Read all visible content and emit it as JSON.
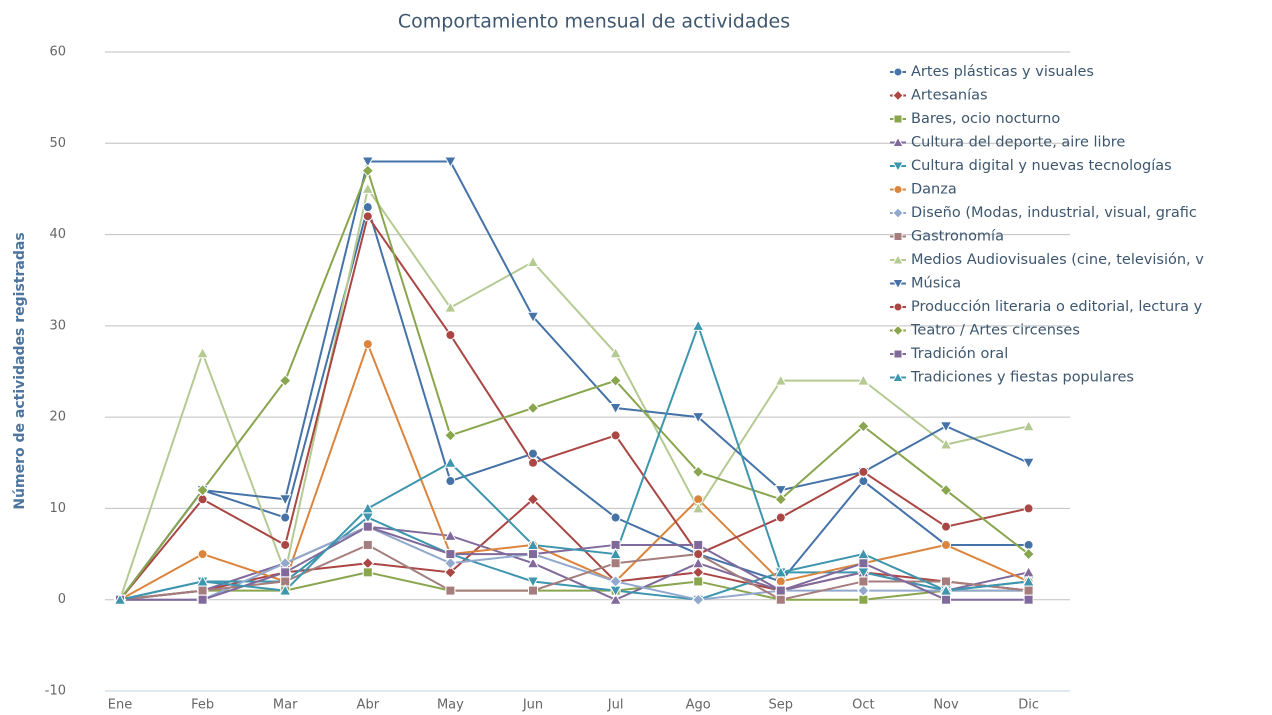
{
  "chart_data": {
    "type": "line",
    "title": "Comportamiento mensual de actividades",
    "y_axis_label": "Número de actividades registradas",
    "categories": [
      "Ene",
      "Feb",
      "Mar",
      "Abr",
      "May",
      "Jun",
      "Jul",
      "Ago",
      "Sep",
      "Oct",
      "Nov",
      "Dic"
    ],
    "ylim": [
      -10,
      60
    ],
    "yticks": [
      -10,
      0,
      10,
      20,
      30,
      40,
      50,
      60
    ],
    "grid": true,
    "legend": "top-right",
    "series": [
      {
        "name": "Artes plásticas y visuales",
        "color": "#4572A7",
        "marker": "circle",
        "values": [
          0,
          12,
          9,
          43,
          13,
          16,
          9,
          5,
          2,
          13,
          6,
          6
        ]
      },
      {
        "name": "Artesanías",
        "color": "#AA4643",
        "marker": "diamond",
        "values": [
          0,
          1,
          3,
          4,
          3,
          11,
          2,
          3,
          1,
          3,
          2,
          1
        ]
      },
      {
        "name": "Bares, ocio nocturno",
        "color": "#89A54E",
        "marker": "square",
        "values": [
          0,
          1,
          1,
          3,
          1,
          1,
          1,
          2,
          0,
          0,
          1,
          1
        ]
      },
      {
        "name": "Cultura del deporte, aire libre",
        "color": "#80699B",
        "marker": "triangle",
        "values": [
          0,
          1,
          4,
          8,
          7,
          4,
          0,
          4,
          1,
          3,
          1,
          3
        ]
      },
      {
        "name": "Cultura digital y nuevas tecnologías",
        "color": "#3D96AE",
        "marker": "triangle-down",
        "values": [
          0,
          2,
          2,
          9,
          5,
          2,
          1,
          0,
          3,
          3,
          1,
          2
        ]
      },
      {
        "name": "Danza",
        "color": "#DB843D",
        "marker": "circle",
        "values": [
          0,
          5,
          2,
          28,
          5,
          6,
          2,
          11,
          2,
          4,
          6,
          2
        ]
      },
      {
        "name": "Diseño (Modas, industrial, visual, grafic",
        "color": "#92A8CD",
        "marker": "diamond",
        "values": [
          0,
          0,
          4,
          8,
          4,
          5,
          2,
          0,
          1,
          1,
          1,
          1
        ]
      },
      {
        "name": "Gastronomía",
        "color": "#A47D7C",
        "marker": "square",
        "values": [
          0,
          1,
          2,
          6,
          1,
          1,
          4,
          5,
          0,
          2,
          2,
          1
        ]
      },
      {
        "name": "Medios Audiovisuales (cine, televisión, v",
        "color": "#B5CA92",
        "marker": "triangle",
        "values": [
          0,
          27,
          3,
          45,
          32,
          37,
          27,
          10,
          24,
          24,
          17,
          19
        ]
      },
      {
        "name": "Música",
        "color": "#4572A7",
        "marker": "triangle-down",
        "values": [
          0,
          12,
          11,
          48,
          48,
          31,
          21,
          20,
          12,
          14,
          19,
          15
        ]
      },
      {
        "name": "Producción literaria o editorial, lectura y",
        "color": "#AA4643",
        "marker": "circle",
        "values": [
          0,
          11,
          6,
          42,
          29,
          15,
          18,
          5,
          9,
          14,
          8,
          10
        ]
      },
      {
        "name": "Teatro / Artes circenses",
        "color": "#89A54E",
        "marker": "diamond",
        "values": [
          0,
          12,
          24,
          47,
          18,
          21,
          24,
          14,
          11,
          19,
          12,
          5
        ]
      },
      {
        "name": "Tradición oral",
        "color": "#80699B",
        "marker": "square",
        "values": [
          0,
          0,
          3,
          8,
          5,
          5,
          6,
          6,
          1,
          4,
          0,
          0
        ]
      },
      {
        "name": "Tradiciones y fiestas populares",
        "color": "#3D96AE",
        "marker": "triangle",
        "values": [
          0,
          2,
          1,
          10,
          15,
          6,
          5,
          30,
          3,
          5,
          1,
          2
        ]
      }
    ]
  }
}
